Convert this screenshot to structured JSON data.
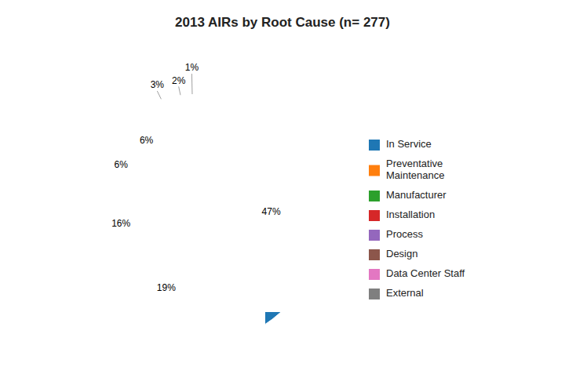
{
  "chart_data": {
    "type": "pie",
    "title": "2013 AIRs by Root Cause (n= 277)",
    "categories": [
      "In Service",
      "Preventative\nMaintenance",
      "Manufacturer",
      "Installation",
      "Process",
      "Design",
      "Data Center Staff",
      "External"
    ],
    "values": [
      47,
      19,
      16,
      6,
      6,
      3,
      2,
      1
    ],
    "value_labels": [
      "47%",
      "19%",
      "16%",
      "6%",
      "6%",
      "3%",
      "2%",
      "1%"
    ],
    "data_labels": true,
    "legend": "right"
  }
}
